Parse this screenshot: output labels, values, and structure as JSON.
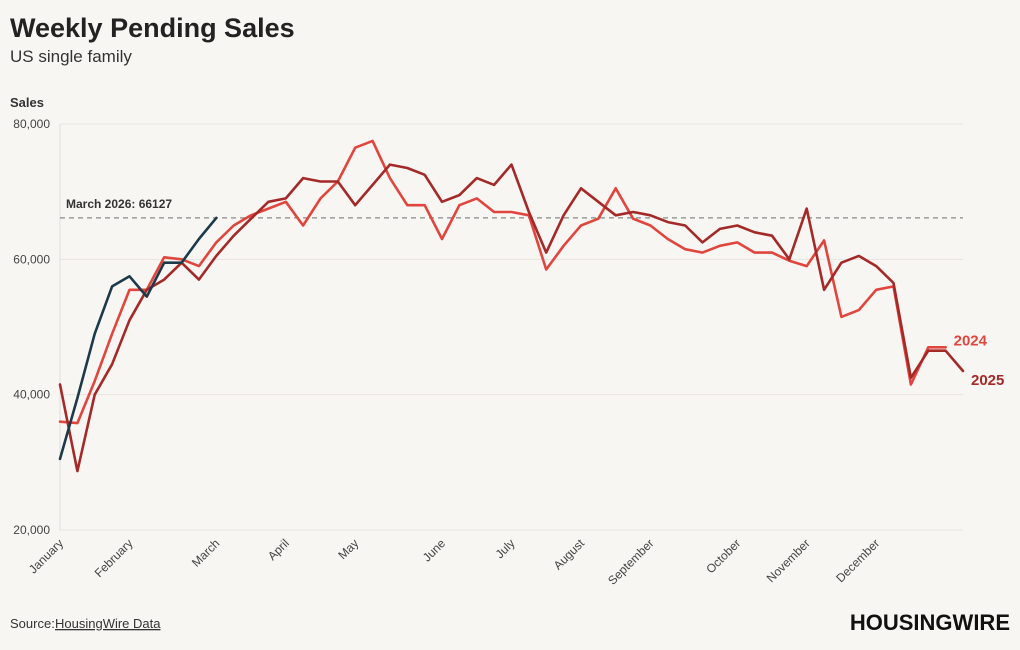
{
  "chart_data": {
    "type": "line",
    "title": "Weekly Pending Sales",
    "subtitle": "US single family",
    "y_label": "Sales",
    "source_prefix": "Source:",
    "source_link": "HousingWire Data",
    "brand": "HOUSINGWIRE",
    "categories": [
      "January",
      null,
      null,
      null,
      "February",
      null,
      null,
      null,
      null,
      "March",
      null,
      null,
      null,
      "April",
      null,
      null,
      null,
      "May",
      null,
      null,
      null,
      null,
      "June",
      null,
      null,
      null,
      "July",
      null,
      null,
      null,
      "August",
      null,
      null,
      null,
      "September",
      null,
      null,
      null,
      null,
      "October",
      null,
      null,
      null,
      "November",
      null,
      null,
      null,
      "December",
      null,
      null,
      null,
      null,
      null
    ],
    "series": [
      {
        "name": "2024",
        "color": "#e0463e",
        "values": [
          36000,
          35800,
          42000,
          49000,
          55500,
          55500,
          60300,
          60000,
          59000,
          62500,
          65000,
          66500,
          67500,
          68500,
          65000,
          69000,
          71500,
          76500,
          77500,
          72000,
          68000,
          68000,
          63000,
          68000,
          69000,
          67000,
          67000,
          66500,
          58500,
          62000,
          65000,
          66000,
          70500,
          66000,
          65000,
          63000,
          61500,
          61000,
          62000,
          62500,
          61000,
          61000,
          59800,
          59000,
          62800,
          51500,
          52500,
          55500,
          56000,
          41500,
          47000,
          47000,
          null
        ]
      },
      {
        "name": "2025",
        "color": "#a32a28",
        "values": [
          41500,
          28700,
          40000,
          44500,
          51000,
          55500,
          57000,
          59500,
          57000,
          60500,
          63500,
          66000,
          68500,
          69000,
          72000,
          71500,
          71500,
          68000,
          71000,
          74000,
          73500,
          72500,
          68500,
          69500,
          72000,
          71000,
          74000,
          67000,
          61000,
          66500,
          70500,
          68500,
          66500,
          67000,
          66500,
          65500,
          65000,
          62500,
          64500,
          65000,
          64000,
          63500,
          60000,
          67500,
          55500,
          59500,
          60500,
          59000,
          56500,
          42500,
          46500,
          46500,
          43500
        ]
      },
      {
        "color": "#1d3a4a",
        "values": [
          30500,
          39500,
          49000,
          56000,
          57500,
          54500,
          59500,
          59500,
          63000,
          66127,
          null,
          null,
          null,
          null,
          null,
          null,
          null,
          null,
          null,
          null,
          null,
          null,
          null,
          null,
          null,
          null,
          null,
          null,
          null,
          null,
          null,
          null,
          null,
          null,
          null,
          null,
          null,
          null,
          null,
          null,
          null,
          null,
          null,
          null,
          null,
          null,
          null,
          null,
          null,
          null,
          null,
          null,
          null
        ]
      }
    ],
    "ref_line": {
      "value": 66127,
      "label": "March 2026: 66127",
      "color": "#888888"
    },
    "ylim": [
      20000,
      80000
    ],
    "yticks": [
      {
        "value": 20000,
        "label": "20,000"
      },
      {
        "value": 40000,
        "label": "40,000"
      },
      {
        "value": 60000,
        "label": "60,000"
      },
      {
        "value": 80000,
        "label": "80,000"
      }
    ],
    "grid": true
  }
}
